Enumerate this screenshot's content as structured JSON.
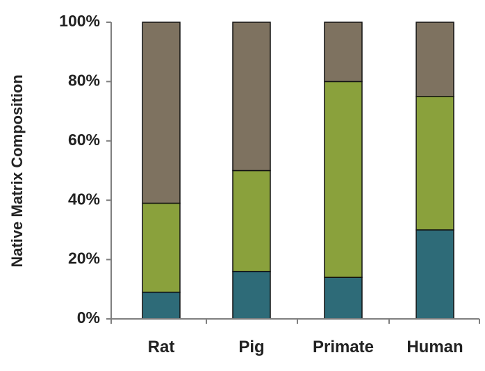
{
  "chart_data": {
    "type": "bar",
    "stacked": true,
    "title": "",
    "xlabel": "",
    "ylabel": "Native Matrix Composition",
    "categories": [
      "Rat",
      "Pig",
      "Primate",
      "Human"
    ],
    "series": [
      {
        "values": [
          9,
          16,
          14,
          30
        ],
        "color": "#2e6b78"
      },
      {
        "values": [
          30,
          34,
          66,
          45
        ],
        "color": "#8aa13c"
      },
      {
        "values": [
          61,
          50,
          20,
          25
        ],
        "color": "#7e7260"
      }
    ],
    "ylim": [
      0,
      100
    ],
    "yticks": [
      0,
      20,
      40,
      60,
      80,
      100
    ],
    "ytick_labels": [
      "0%",
      "20%",
      "40%",
      "60%",
      "80%",
      "100%"
    ],
    "grid": false,
    "legend": "none"
  }
}
